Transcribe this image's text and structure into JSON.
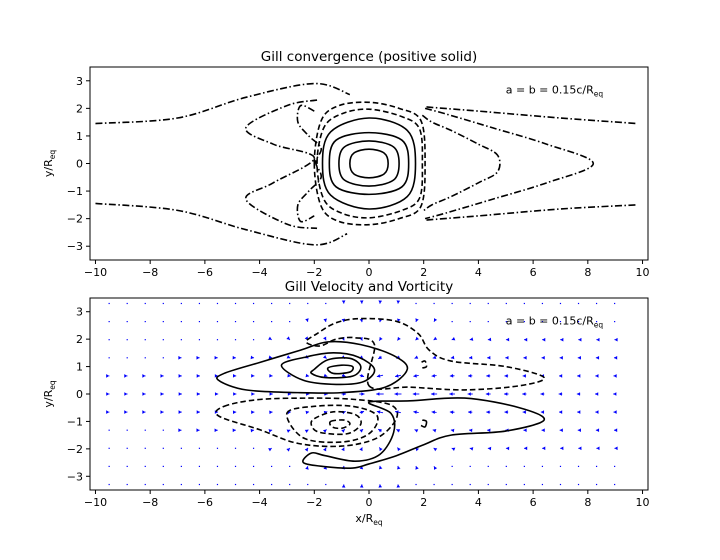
{
  "chart_data": [
    {
      "type": "contour",
      "title": "Gill convergence (positive solid)",
      "annotation": {
        "text": "a = b = 0.15c/R",
        "sub": "eq",
        "x": 5.0,
        "y": 2.5
      },
      "xlabel": "",
      "ylabel": {
        "text": "y/R",
        "sub": "eq"
      },
      "xlim": [
        -10.2,
        10.2
      ],
      "ylim": [
        -3.5,
        3.5
      ],
      "xticks": [
        -10,
        -8,
        -6,
        -4,
        -2,
        0,
        2,
        4,
        6,
        8,
        10
      ],
      "yticks": [
        -3,
        -2,
        -1,
        0,
        1,
        2,
        3
      ],
      "grid": false,
      "contours": [
        {
          "style": "solid",
          "points": [
            [
              -0.7,
              0.0
            ],
            [
              -0.55,
              0.38
            ],
            [
              0,
              0.52
            ],
            [
              0.55,
              0.38
            ],
            [
              0.7,
              0.0
            ],
            [
              0.55,
              -0.38
            ],
            [
              0,
              -0.52
            ],
            [
              -0.55,
              -0.38
            ]
          ]
        },
        {
          "style": "solid",
          "points": [
            [
              -1.1,
              0.0
            ],
            [
              -0.9,
              0.6
            ],
            [
              0,
              0.82
            ],
            [
              0.9,
              0.6
            ],
            [
              1.1,
              0.0
            ],
            [
              0.9,
              -0.6
            ],
            [
              0,
              -0.82
            ],
            [
              -0.9,
              -0.6
            ]
          ]
        },
        {
          "style": "solid",
          "points": [
            [
              -1.45,
              0.0
            ],
            [
              -1.2,
              0.85
            ],
            [
              0,
              1.12
            ],
            [
              1.2,
              0.85
            ],
            [
              1.45,
              0.0
            ],
            [
              1.2,
              -0.85
            ],
            [
              0,
              -1.12
            ],
            [
              -1.2,
              -0.85
            ]
          ]
        },
        {
          "style": "solid",
          "points": [
            [
              -1.7,
              0.0
            ],
            [
              -1.4,
              1.15
            ],
            [
              0,
              1.65
            ],
            [
              1.4,
              1.2
            ],
            [
              1.7,
              0.0
            ],
            [
              1.4,
              -1.2
            ],
            [
              0,
              -1.65
            ],
            [
              -1.4,
              -1.15
            ]
          ]
        },
        {
          "style": "dashed",
          "points": [
            [
              -1.9,
              0.0
            ],
            [
              -1.65,
              1.3
            ],
            [
              -1.0,
              1.8
            ],
            [
              0,
              1.97
            ],
            [
              1.2,
              1.7
            ],
            [
              1.85,
              1.25
            ],
            [
              1.95,
              0.0
            ],
            [
              1.85,
              -1.25
            ],
            [
              1.2,
              -1.7
            ],
            [
              0,
              -1.97
            ],
            [
              -1.0,
              -1.8
            ],
            [
              -1.65,
              -1.3
            ]
          ]
        },
        {
          "style": "dashed",
          "points": [
            [
              -2.0,
              0.0
            ],
            [
              -1.75,
              1.55
            ],
            [
              -1.1,
              2.1
            ],
            [
              0,
              2.22
            ],
            [
              1.1,
              2.0
            ],
            [
              1.9,
              1.55
            ],
            [
              2.05,
              0.0
            ],
            [
              1.9,
              -1.55
            ],
            [
              1.1,
              -2.0
            ],
            [
              0,
              -2.22
            ],
            [
              -1.1,
              -2.1
            ],
            [
              -1.75,
              -1.55
            ]
          ]
        },
        {
          "style": "dashdot",
          "points": [
            [
              1.95,
              1.75
            ],
            [
              2.3,
              1.5
            ],
            [
              3.0,
              1.2
            ],
            [
              4.0,
              0.7
            ],
            [
              4.7,
              0.3
            ],
            [
              4.7,
              -0.3
            ],
            [
              4.0,
              -0.7
            ],
            [
              3.0,
              -1.2
            ],
            [
              2.3,
              -1.5
            ],
            [
              1.95,
              -1.75
            ]
          ]
        },
        {
          "style": "dashdot",
          "points": [
            [
              2.05,
              2.0
            ],
            [
              2.8,
              1.8
            ],
            [
              4.5,
              1.3
            ],
            [
              6.5,
              0.7
            ],
            [
              8.2,
              0.0
            ],
            [
              6.5,
              -0.7
            ],
            [
              4.5,
              -1.3
            ],
            [
              2.8,
              -1.8
            ],
            [
              2.05,
              -2.0
            ]
          ]
        },
        {
          "style": "dashdot",
          "points": [
            [
              2.1,
              2.05
            ],
            [
              4.0,
              1.9
            ],
            [
              7.0,
              1.65
            ],
            [
              9.8,
              1.45
            ]
          ]
        },
        {
          "style": "dashdot",
          "points": [
            [
              2.1,
              -2.05
            ],
            [
              4.0,
              -1.9
            ],
            [
              7.0,
              -1.65
            ],
            [
              9.8,
              -1.5
            ]
          ]
        },
        {
          "style": "dashdot",
          "points": [
            [
              -2.0,
              1.9
            ],
            [
              -2.5,
              2.1
            ],
            [
              -2.6,
              1.5
            ],
            [
              -2.2,
              1.0
            ],
            [
              -1.75,
              0.55
            ],
            [
              -1.95,
              0.05
            ],
            [
              -1.75,
              -0.5
            ],
            [
              -2.2,
              -1.0
            ],
            [
              -2.6,
              -1.5
            ],
            [
              -2.5,
              -2.1
            ],
            [
              -2.0,
              -1.9
            ]
          ]
        },
        {
          "style": "dashdot",
          "points": [
            [
              -1.9,
              2.3
            ],
            [
              -3.0,
              2.1
            ],
            [
              -4.5,
              1.3
            ],
            [
              -3.5,
              0.7
            ],
            [
              -2.0,
              0.2
            ],
            [
              -3.5,
              -0.7
            ],
            [
              -4.5,
              -1.3
            ],
            [
              -3.0,
              -2.2
            ],
            [
              -1.9,
              -2.35
            ]
          ]
        },
        {
          "style": "dashdot",
          "points": [
            [
              -10,
              1.45
            ],
            [
              -7,
              1.65
            ],
            [
              -4.5,
              2.4
            ],
            [
              -2.0,
              2.9
            ],
            [
              -0.7,
              2.5
            ]
          ]
        },
        {
          "style": "dashdot",
          "points": [
            [
              -10,
              -1.45
            ],
            [
              -7,
              -1.7
            ],
            [
              -4.5,
              -2.4
            ],
            [
              -2.0,
              -2.95
            ],
            [
              -0.8,
              -2.55
            ]
          ]
        }
      ]
    },
    {
      "type": "quiver",
      "title": "Gill Velocity and Vorticity",
      "annotation": {
        "text": "a = b = 0.15c/R",
        "sub": "eq",
        "x": 5.0,
        "y": 2.5
      },
      "xlabel": {
        "text": "x/R",
        "sub": "eq"
      },
      "ylabel": {
        "text": "y/R",
        "sub": "eq"
      },
      "xlim": [
        -10.2,
        10.2
      ],
      "ylim": [
        -3.5,
        3.5
      ],
      "xticks": [
        -10,
        -8,
        -6,
        -4,
        -2,
        0,
        2,
        4,
        6,
        8,
        10
      ],
      "yticks": [
        -3,
        -2,
        -1,
        0,
        1,
        2,
        3
      ],
      "grid": false,
      "quiver_grid": {
        "x_start": -9.5,
        "x_step": 0.66,
        "x_count": 29,
        "y_start": -3.3,
        "y_step": 0.66,
        "y_count": 11
      },
      "contours": [
        {
          "style": "solid",
          "points": [
            [
              -1.5,
              0.95
            ],
            [
              -1.0,
              1.05
            ],
            [
              -0.6,
              1.0
            ],
            [
              -0.7,
              0.8
            ],
            [
              -1.3,
              0.75
            ]
          ]
        },
        {
          "style": "solid",
          "points": [
            [
              -2.0,
              0.9
            ],
            [
              -1.5,
              1.25
            ],
            [
              -0.7,
              1.3
            ],
            [
              -0.3,
              1.0
            ],
            [
              -0.6,
              0.65
            ],
            [
              -1.6,
              0.6
            ],
            [
              -2.1,
              0.75
            ]
          ]
        },
        {
          "style": "solid",
          "points": [
            [
              -3.2,
              1.05
            ],
            [
              -2.3,
              1.35
            ],
            [
              -1.3,
              1.5
            ],
            [
              -0.4,
              1.35
            ],
            [
              0.2,
              0.9
            ],
            [
              -0.2,
              0.45
            ],
            [
              -1.2,
              0.35
            ],
            [
              -2.4,
              0.5
            ]
          ]
        },
        {
          "style": "solid",
          "points": [
            [
              -5.3,
              0.75
            ],
            [
              -4.0,
              1.15
            ],
            [
              -2.5,
              1.6
            ],
            [
              -1.5,
              1.9
            ],
            [
              -0.3,
              1.8
            ],
            [
              0.9,
              1.4
            ],
            [
              1.4,
              0.9
            ],
            [
              0.6,
              0.25
            ],
            [
              -1.0,
              0.05
            ],
            [
              -2.6,
              0.05
            ],
            [
              -4.5,
              0.15
            ],
            [
              -5.5,
              0.5
            ]
          ]
        },
        {
          "style": "dashed",
          "points": [
            [
              -1.4,
              -1.0
            ],
            [
              -0.9,
              -0.95
            ],
            [
              -0.7,
              -1.1
            ],
            [
              -1.0,
              -1.25
            ],
            [
              -1.35,
              -1.2
            ]
          ]
        },
        {
          "style": "dashed",
          "points": [
            [
              -2.0,
              -0.9
            ],
            [
              -1.3,
              -0.65
            ],
            [
              -0.5,
              -0.75
            ],
            [
              -0.3,
              -1.1
            ],
            [
              -0.8,
              -1.45
            ],
            [
              -1.8,
              -1.4
            ],
            [
              -2.1,
              -1.15
            ]
          ]
        },
        {
          "style": "dashed",
          "points": [
            [
              -3.0,
              -0.7
            ],
            [
              -2.0,
              -0.45
            ],
            [
              -0.6,
              -0.45
            ],
            [
              0.3,
              -0.8
            ],
            [
              0.0,
              -1.45
            ],
            [
              -1.0,
              -1.75
            ],
            [
              -2.4,
              -1.6
            ]
          ]
        },
        {
          "style": "dashed",
          "points": [
            [
              -5.3,
              -0.45
            ],
            [
              -4.0,
              -0.2
            ],
            [
              -2.0,
              -0.15
            ],
            [
              -0.5,
              -0.2
            ],
            [
              0.8,
              -0.4
            ],
            [
              1.0,
              -0.9
            ],
            [
              0.3,
              -1.6
            ],
            [
              -1.0,
              -1.9
            ],
            [
              -2.6,
              -1.8
            ],
            [
              -4.0,
              -1.3
            ],
            [
              -5.5,
              -0.8
            ]
          ]
        },
        {
          "style": "dashed",
          "points": [
            [
              0.0,
              0.3
            ],
            [
              1.5,
              0.25
            ],
            [
              3.5,
              0.15
            ],
            [
              5.5,
              0.3
            ],
            [
              6.4,
              0.6
            ],
            [
              5.0,
              1.0
            ],
            [
              3.0,
              1.2
            ],
            [
              2.2,
              1.6
            ],
            [
              1.8,
              2.2
            ],
            [
              1.0,
              2.65
            ],
            [
              -0.3,
              2.75
            ],
            [
              -1.2,
              2.6
            ],
            [
              -1.9,
              2.2
            ],
            [
              -2.3,
              1.9
            ],
            [
              -1.8,
              1.75
            ],
            [
              -1.2,
              2.0
            ],
            [
              -0.5,
              2.05
            ],
            [
              0.2,
              1.8
            ]
          ]
        },
        {
          "style": "solid",
          "points": [
            [
              0.0,
              -0.3
            ],
            [
              1.5,
              -0.25
            ],
            [
              3.5,
              -0.15
            ],
            [
              5.5,
              -0.5
            ],
            [
              6.4,
              -0.95
            ],
            [
              5.0,
              -1.35
            ],
            [
              3.0,
              -1.5
            ],
            [
              2.0,
              -1.85
            ],
            [
              1.0,
              -2.25
            ],
            [
              0.0,
              -2.55
            ],
            [
              -0.6,
              -2.7
            ],
            [
              -1.6,
              -2.65
            ],
            [
              -2.4,
              -2.5
            ],
            [
              -2.1,
              -2.15
            ],
            [
              -1.6,
              -2.25
            ],
            [
              -0.5,
              -2.45
            ],
            [
              0.4,
              -2.2
            ],
            [
              0.9,
              -1.4
            ],
            [
              0.8,
              -0.7
            ]
          ]
        },
        {
          "style": "solid",
          "points": [
            [
              1.95,
              -0.95
            ],
            [
              2.1,
              -1.0
            ],
            [
              2.05,
              -1.2
            ],
            [
              1.9,
              -1.15
            ]
          ]
        },
        {
          "style": "dashed",
          "points": [
            [
              1.95,
              0.95
            ],
            [
              2.1,
              1.0
            ],
            [
              2.05,
              1.2
            ],
            [
              1.9,
              1.15
            ]
          ]
        }
      ]
    }
  ]
}
